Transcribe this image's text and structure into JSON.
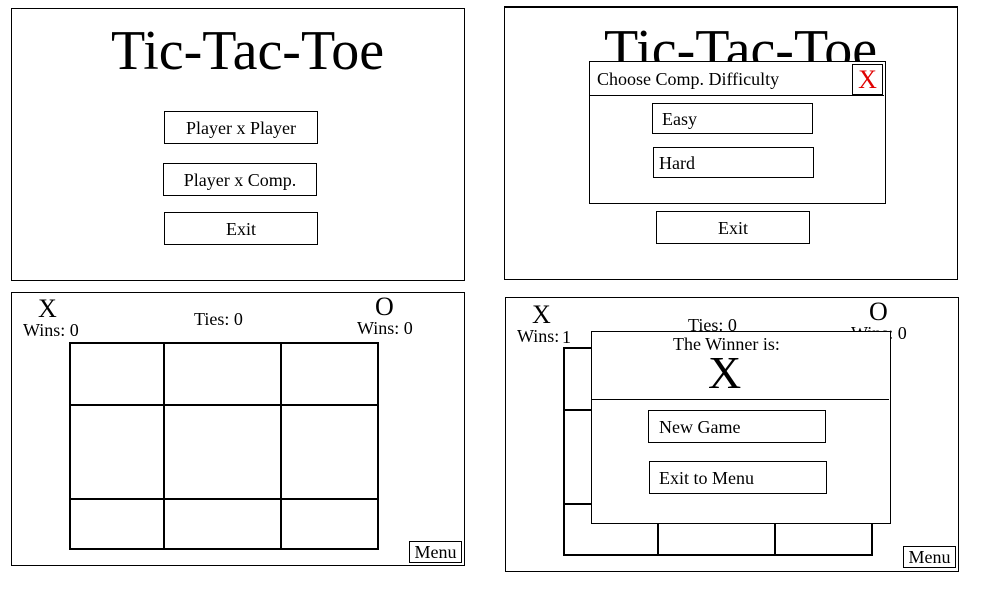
{
  "main_menu": {
    "title": "Tic-Tac-Toe",
    "pvp_label": "Player x Player",
    "pvc_label": "Player x Comp.",
    "exit_label": "Exit"
  },
  "difficulty_screen": {
    "title": "Tic-Tac-Toe",
    "dialog_title": "Choose Comp. Difficulty",
    "close_label": "X",
    "easy_label": "Easy",
    "hard_label": "Hard",
    "exit_label": "Exit",
    "close_color": "#e00000"
  },
  "game_board": {
    "player_x": "X",
    "player_o": "O",
    "x_wins": "Wins: 0",
    "o_wins": "Wins: 0",
    "ties": "Ties: 0",
    "menu_label": "Menu"
  },
  "winner_screen": {
    "player_x": "X",
    "player_o": "O",
    "x_wins": "Wins:",
    "x_wins_count": "1",
    "o_wins": "Wins: 0",
    "ties": "Ties: 0",
    "winner_heading": "The Winner is:",
    "winner": "X",
    "new_game_label": "New Game",
    "exit_menu_label": "Exit to Menu",
    "menu_label": "Menu"
  }
}
